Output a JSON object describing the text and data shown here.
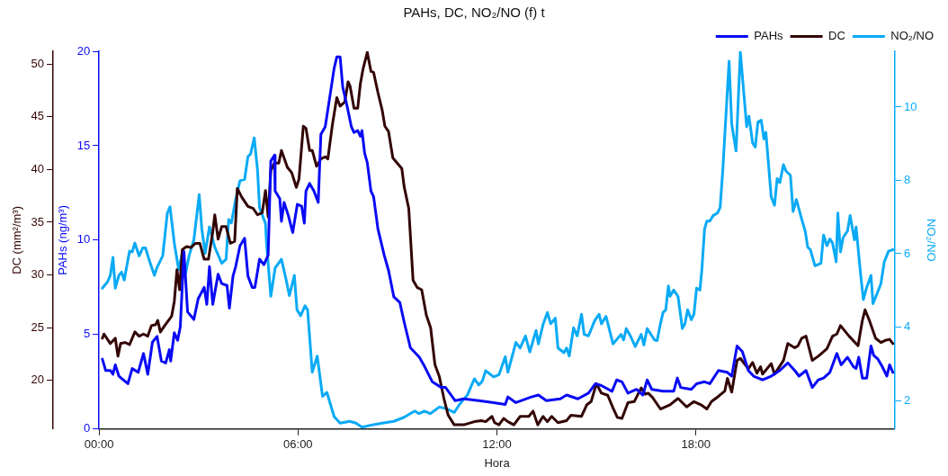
{
  "chart_data": {
    "type": "line",
    "title": "PAHs, DC, NO₂/NO (f) t",
    "xlabel": "Hora",
    "ylabel": "PAHs (ng/m³)",
    "y2label": "DC (mm²/m³)",
    "y3label": "NO₂/NO",
    "xlim": [
      0,
      24
    ],
    "xticks": [
      {
        "value": 0,
        "label": "00:00"
      },
      {
        "value": 6,
        "label": "06:00"
      },
      {
        "value": 12,
        "label": "12:00"
      },
      {
        "value": 18,
        "label": "18:00"
      }
    ],
    "ylim": [
      0,
      20
    ],
    "yticks": [
      0,
      5,
      10,
      15,
      20
    ],
    "y2lim": [
      15.4,
      51.2
    ],
    "y2ticks": [
      20,
      25,
      30,
      35,
      40,
      45,
      50
    ],
    "y3lim": [
      1.22,
      11.52
    ],
    "y3ticks": [
      2,
      4,
      6,
      8,
      10
    ],
    "legend": "top right",
    "series": [
      {
        "name": "PAHs",
        "color": "#0a0af5",
        "axis": "y",
        "x": [
          0.1,
          0.2,
          0.34,
          0.42,
          0.49,
          0.6,
          0.87,
          1.0,
          1.18,
          1.34,
          1.47,
          1.61,
          1.75,
          1.88,
          2.01,
          2.12,
          2.16,
          2.27,
          2.37,
          2.45,
          2.56,
          2.67,
          2.86,
          2.99,
          3.17,
          3.25,
          3.33,
          3.43,
          3.59,
          3.7,
          3.86,
          3.93,
          4.04,
          4.12,
          4.25,
          4.39,
          4.49,
          4.62,
          4.7,
          4.84,
          4.97,
          5.1,
          5.18,
          5.29,
          5.31,
          5.45,
          5.5,
          5.58,
          5.71,
          5.84,
          5.98,
          6.11,
          6.19,
          6.24,
          6.35,
          6.48,
          6.61,
          6.69,
          6.82,
          6.9,
          7.09,
          7.17,
          7.27,
          7.35,
          7.48,
          7.61,
          7.69,
          7.8,
          7.88,
          7.93,
          8.01,
          8.09,
          8.2,
          8.28,
          8.41,
          8.6,
          8.73,
          8.89,
          9.07,
          9.21,
          9.39,
          9.66,
          9.79,
          10.05,
          10.32,
          10.45,
          10.74,
          11.0,
          11.45,
          11.9,
          12.25,
          12.33,
          12.57,
          13.04,
          13.25,
          13.49,
          13.91,
          14.1,
          14.44,
          14.76,
          14.97,
          15.15,
          15.47,
          15.61,
          15.77,
          15.95,
          16.21,
          16.4,
          16.53,
          16.67,
          17.01,
          17.33,
          17.44,
          17.54,
          17.86,
          18.02,
          18.26,
          18.42,
          18.68,
          18.95,
          19.08,
          19.24,
          19.4,
          19.58,
          19.74,
          20.01,
          20.27,
          20.53,
          20.77,
          20.98,
          21.11,
          21.32,
          21.51,
          21.69,
          21.85,
          22.04,
          22.25,
          22.38,
          22.57,
          22.75,
          22.83,
          22.91,
          23.02,
          23.15,
          23.28,
          23.36,
          23.49,
          23.62,
          23.76,
          23.84,
          23.94
        ],
        "values": [
          3.7,
          3.1,
          3.1,
          2.9,
          3.4,
          2.8,
          2.4,
          3.2,
          3.0,
          4.0,
          2.9,
          4.6,
          4.9,
          3.6,
          3.5,
          4.2,
          3.6,
          5.1,
          4.7,
          5.4,
          9.4,
          6.2,
          5.8,
          6.9,
          7.5,
          6.6,
          8.6,
          6.6,
          8.2,
          7.7,
          7.6,
          6.4,
          8.1,
          8.6,
          9.7,
          10.1,
          8.1,
          7.5,
          7.5,
          9.0,
          8.7,
          9.2,
          14.2,
          14.5,
          12.6,
          12.2,
          11.0,
          12.0,
          11.3,
          10.4,
          11.9,
          11.8,
          10.9,
          12.6,
          13.0,
          12.6,
          12.0,
          15.6,
          16.0,
          16.9,
          19.1,
          19.7,
          19.7,
          18.1,
          17.1,
          16.0,
          15.7,
          15.8,
          15.5,
          15.8,
          14.6,
          14.1,
          12.6,
          12.3,
          10.6,
          9.2,
          8.4,
          7.0,
          6.7,
          5.6,
          4.3,
          3.8,
          3.4,
          2.5,
          2.2,
          2.2,
          1.5,
          1.6,
          1.5,
          1.4,
          1.3,
          1.7,
          1.4,
          1.7,
          1.8,
          1.5,
          1.6,
          1.8,
          1.6,
          1.9,
          2.4,
          2.3,
          2.0,
          2.6,
          2.5,
          1.9,
          2.1,
          1.8,
          2.6,
          2.1,
          2.0,
          2.0,
          2.7,
          2.2,
          2.1,
          2.4,
          2.5,
          2.4,
          3.1,
          3.0,
          2.8,
          4.4,
          4.1,
          3.1,
          2.8,
          2.6,
          2.8,
          3.1,
          3.5,
          3.1,
          2.8,
          3.1,
          2.2,
          2.6,
          2.7,
          3.0,
          4.0,
          3.4,
          3.8,
          3.3,
          3.2,
          3.8,
          2.7,
          2.7,
          4.4,
          3.9,
          3.7,
          3.3,
          2.8,
          3.4,
          3.0
        ]
      },
      {
        "name": "DC",
        "color": "#330505",
        "axis": "y2",
        "x": [
          0.1,
          0.15,
          0.34,
          0.49,
          0.57,
          0.65,
          0.79,
          0.92,
          1.08,
          1.21,
          1.34,
          1.47,
          1.58,
          1.71,
          1.77,
          1.85,
          1.98,
          2.12,
          2.19,
          2.27,
          2.35,
          2.43,
          2.51,
          2.64,
          2.77,
          2.91,
          3.04,
          3.17,
          3.3,
          3.43,
          3.49,
          3.59,
          3.7,
          3.83,
          3.96,
          4.09,
          4.17,
          4.3,
          4.49,
          4.65,
          4.78,
          4.92,
          5.02,
          5.1,
          5.18,
          5.29,
          5.42,
          5.5,
          5.68,
          5.81,
          5.95,
          6.03,
          6.16,
          6.24,
          6.35,
          6.43,
          6.56,
          6.69,
          6.82,
          6.9,
          7.04,
          7.17,
          7.27,
          7.41,
          7.51,
          7.57,
          7.69,
          7.8,
          7.88,
          7.96,
          8.09,
          8.2,
          8.28,
          8.41,
          8.54,
          8.62,
          8.73,
          8.86,
          9.02,
          9.13,
          9.2,
          9.34,
          9.47,
          9.6,
          9.73,
          9.87,
          10.0,
          10.13,
          10.26,
          10.4,
          10.53,
          10.71,
          11.0,
          11.32,
          11.53,
          11.66,
          11.85,
          11.93,
          12.06,
          12.2,
          12.33,
          12.51,
          12.7,
          12.96,
          13.09,
          13.23,
          13.39,
          13.52,
          13.65,
          13.84,
          14.1,
          14.23,
          14.55,
          14.71,
          14.84,
          15.0,
          15.15,
          15.34,
          15.5,
          15.63,
          15.77,
          15.95,
          16.14,
          16.27,
          16.35,
          16.48,
          16.56,
          16.69,
          16.8,
          16.93,
          17.22,
          17.46,
          17.72,
          17.94,
          18.15,
          18.33,
          18.47,
          18.68,
          18.87,
          18.95,
          19.08,
          19.24,
          19.34,
          19.58,
          19.71,
          19.84,
          19.95,
          20.01,
          20.27,
          20.37,
          20.64,
          20.77,
          20.98,
          21.08,
          21.19,
          21.32,
          21.51,
          21.69,
          21.95,
          22.12,
          22.25,
          22.36,
          22.62,
          22.89,
          23.02,
          23.1,
          23.23,
          23.42,
          23.58,
          23.71,
          23.84,
          23.94
        ],
        "values": [
          24.0,
          24.4,
          23.5,
          24.0,
          22.3,
          23.5,
          23.6,
          23.4,
          24.6,
          24.2,
          24.4,
          24.2,
          25.2,
          25.3,
          25.7,
          24.6,
          25.2,
          25.8,
          26.1,
          27.5,
          30.5,
          28.6,
          32.4,
          32.7,
          32.6,
          33.0,
          33.0,
          31.5,
          31.5,
          34.1,
          35.7,
          33.4,
          34.6,
          34.6,
          33.0,
          33.2,
          38.2,
          37.4,
          36.5,
          36.3,
          35.7,
          35.9,
          38.0,
          35.5,
          39.9,
          40.6,
          40.6,
          41.8,
          40.2,
          39.7,
          38.3,
          39.1,
          44.1,
          43.9,
          41.8,
          41.8,
          40.3,
          41.0,
          41.2,
          41.0,
          44.3,
          46.8,
          46.0,
          46.4,
          48.3,
          47.9,
          45.8,
          45.8,
          48.1,
          49.5,
          51.1,
          49.3,
          49.2,
          47.3,
          45.6,
          44.1,
          43.6,
          41.1,
          40.5,
          40.1,
          38.4,
          36.3,
          29.5,
          28.8,
          28.6,
          26.2,
          25.0,
          21.5,
          20.4,
          18.3,
          16.7,
          15.8,
          15.8,
          16.1,
          16.2,
          16.1,
          16.6,
          16.0,
          15.8,
          16.4,
          16.1,
          15.8,
          16.6,
          16.6,
          17.1,
          15.8,
          16.6,
          16.1,
          16.6,
          16.0,
          16.2,
          16.7,
          16.6,
          17.7,
          18.0,
          19.7,
          18.8,
          18.6,
          17.4,
          16.5,
          16.4,
          17.9,
          18.0,
          18.8,
          19.3,
          18.7,
          18.8,
          18.4,
          17.9,
          17.3,
          17.7,
          18.3,
          17.5,
          18.0,
          17.7,
          17.3,
          18.0,
          18.5,
          19.0,
          20.2,
          18.9,
          21.9,
          22.1,
          21.1,
          21.7,
          20.7,
          21.3,
          20.6,
          21.6,
          20.6,
          21.9,
          23.5,
          23.1,
          23.3,
          24.0,
          24.2,
          21.9,
          22.3,
          23.0,
          24.2,
          24.4,
          25.2,
          24.2,
          23.3,
          25.7,
          26.7,
          25.7,
          24.0,
          23.6,
          23.8,
          23.9,
          23.5
        ]
      },
      {
        "name": "NO₂/NO",
        "color": "#0aaaf5",
        "axis": "y3",
        "x": [
          0.1,
          0.26,
          0.34,
          0.42,
          0.49,
          0.6,
          0.68,
          0.76,
          0.92,
          1.0,
          1.08,
          1.21,
          1.32,
          1.4,
          1.53,
          1.67,
          1.75,
          1.92,
          2.06,
          2.14,
          2.27,
          2.4,
          2.51,
          2.61,
          2.72,
          2.86,
          3.02,
          3.1,
          3.2,
          3.33,
          3.49,
          3.7,
          3.83,
          3.91,
          3.99,
          4.12,
          4.25,
          4.39,
          4.49,
          4.57,
          4.68,
          4.78,
          4.84,
          5.02,
          5.05,
          5.18,
          5.31,
          5.5,
          5.63,
          5.74,
          5.89,
          5.97,
          6.08,
          6.21,
          6.29,
          6.43,
          6.58,
          6.74,
          6.87,
          7.09,
          7.27,
          7.56,
          7.75,
          7.93,
          8.28,
          8.54,
          8.89,
          9.2,
          9.52,
          9.65,
          9.81,
          9.99,
          10.26,
          10.47,
          10.71,
          10.87,
          11.11,
          11.32,
          11.45,
          11.56,
          11.66,
          11.9,
          12.06,
          12.25,
          12.33,
          12.57,
          12.7,
          12.86,
          12.99,
          13.18,
          13.25,
          13.39,
          13.52,
          13.62,
          13.76,
          13.84,
          14.02,
          14.1,
          14.18,
          14.31,
          14.42,
          14.55,
          14.63,
          14.76,
          14.95,
          15.08,
          15.15,
          15.29,
          15.5,
          15.74,
          15.82,
          15.9,
          16.04,
          16.17,
          16.35,
          16.43,
          16.53,
          16.75,
          16.83,
          16.93,
          17.01,
          17.09,
          17.17,
          17.22,
          17.33,
          17.46,
          17.59,
          17.67,
          17.75,
          17.86,
          17.94,
          18.02,
          18.12,
          18.18,
          18.26,
          18.33,
          18.42,
          18.52,
          18.65,
          18.73,
          18.81,
          19.0,
          19.08,
          19.21,
          19.34,
          19.53,
          19.6,
          19.71,
          19.79,
          19.87,
          19.97,
          20.05,
          20.11,
          20.27,
          20.37,
          20.45,
          20.53,
          20.64,
          20.72,
          20.85,
          20.93,
          21.03,
          21.16,
          21.3,
          21.37,
          21.45,
          21.59,
          21.77,
          21.85,
          21.95,
          22.04,
          22.12,
          22.23,
          22.28,
          22.36,
          22.44,
          22.57,
          22.65,
          22.78,
          22.83,
          22.97,
          23.05,
          23.15,
          23.28,
          23.34,
          23.44,
          23.58,
          23.68,
          23.81,
          23.94
        ],
        "values": [
          5.06,
          5.24,
          5.41,
          5.9,
          5.06,
          5.41,
          5.5,
          5.28,
          6.07,
          6.05,
          6.29,
          5.94,
          6.16,
          6.16,
          5.78,
          5.41,
          5.63,
          5.94,
          7.11,
          7.28,
          6.29,
          5.57,
          6.01,
          5.46,
          5.96,
          6.38,
          7.61,
          6.67,
          6.01,
          6.73,
          6.18,
          5.74,
          5.85,
          6.93,
          6.84,
          7.48,
          7.99,
          8.03,
          8.65,
          8.72,
          9.16,
          8.27,
          7.26,
          6.82,
          6.29,
          4.84,
          5.61,
          5.85,
          5.34,
          4.86,
          5.41,
          4.47,
          4.31,
          4.58,
          4.47,
          2.77,
          3.21,
          2.11,
          2.22,
          1.56,
          1.38,
          1.43,
          1.38,
          1.27,
          1.34,
          1.38,
          1.43,
          1.54,
          1.71,
          1.64,
          1.71,
          1.64,
          1.82,
          1.78,
          1.67,
          1.89,
          2.15,
          2.59,
          2.42,
          2.53,
          2.81,
          2.64,
          2.7,
          3.19,
          2.77,
          3.58,
          3.43,
          3.76,
          3.32,
          3.91,
          3.54,
          4.07,
          4.4,
          4.09,
          4.24,
          3.43,
          3.3,
          3.43,
          3.21,
          3.98,
          3.76,
          4.35,
          3.8,
          3.76,
          4.18,
          4.35,
          4.09,
          4.29,
          3.54,
          3.8,
          3.65,
          3.96,
          3.73,
          3.47,
          3.8,
          3.51,
          3.96,
          3.65,
          3.63,
          4.09,
          4.4,
          4.47,
          5.12,
          4.84,
          5.01,
          4.84,
          3.96,
          4.09,
          4.47,
          4.2,
          4.35,
          5.06,
          5.01,
          5.57,
          6.67,
          6.89,
          6.89,
          7.04,
          7.11,
          7.26,
          8.27,
          11.25,
          9.53,
          8.8,
          11.5,
          9.46,
          9.75,
          9.02,
          8.91,
          9.59,
          9.64,
          9.13,
          9.31,
          7.55,
          7.32,
          8.05,
          7.94,
          8.43,
          8.25,
          8.14,
          7.15,
          7.48,
          7.04,
          6.6,
          6.18,
          6.11,
          5.67,
          5.74,
          6.51,
          6.22,
          6.4,
          6.29,
          5.78,
          7.11,
          6.05,
          6.44,
          6.62,
          7.04,
          6.38,
          6.73,
          5.41,
          4.75,
          5.08,
          5.41,
          4.64,
          4.86,
          5.19,
          5.78,
          6.07,
          6.11
        ]
      }
    ]
  }
}
